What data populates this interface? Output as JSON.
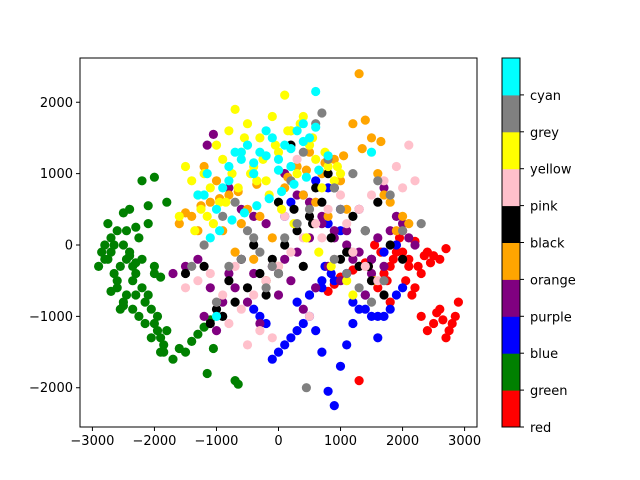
{
  "chart_data": {
    "type": "scatter",
    "title": "",
    "xlabel": "",
    "ylabel": "",
    "xlim": [
      -3200,
      3200
    ],
    "ylim": [
      -2550,
      2620
    ],
    "xticks": [
      -3000,
      -2000,
      -1000,
      0,
      1000,
      2000,
      3000
    ],
    "yticks": [
      -2000,
      -1000,
      0,
      1000,
      2000
    ],
    "grid": false,
    "colorbar": {
      "position": "right",
      "categories": [
        "red",
        "green",
        "blue",
        "purple",
        "orange",
        "black",
        "pink",
        "yellow",
        "grey",
        "cyan"
      ],
      "colors": {
        "red": "#ff0000",
        "green": "#008000",
        "blue": "#0000ff",
        "purple": "#800080",
        "orange": "#ffa500",
        "black": "#000000",
        "pink": "#ffc0cb",
        "yellow": "#ffff00",
        "grey": "#808080",
        "cyan": "#00ffff"
      }
    },
    "series": [
      {
        "name": "green",
        "x": [
          -2900,
          -2850,
          -2800,
          -2750,
          -2700,
          -2650,
          -2600,
          -2550,
          -2500,
          -2450,
          -2400,
          -2350,
          -2300,
          -2250,
          -2200,
          -2150,
          -2100,
          -2050,
          -2000,
          -1950,
          -1900,
          -1850,
          -1800,
          -2750,
          -2650,
          -2600,
          -2500,
          -2450,
          -2400,
          -2350,
          -2300,
          -2200,
          -2100,
          -2000,
          -1950,
          -1850,
          -2800,
          -2700,
          -2550,
          -2450,
          -2350,
          -2250,
          -2150,
          -2050,
          -1900,
          -1700,
          -1600,
          -1500,
          -1400,
          -1300,
          -1200,
          -1100,
          -2600,
          -2500,
          -2400,
          -2300,
          -2200,
          -2100,
          -2000,
          -1800,
          -1150,
          -1050,
          -700,
          -650,
          -2000,
          -1900,
          -2700,
          -2500,
          -2300
        ],
        "y": [
          -300,
          -100,
          0,
          -200,
          100,
          -400,
          -600,
          -300,
          0,
          200,
          -100,
          -500,
          -700,
          100,
          -200,
          -800,
          300,
          -900,
          -1100,
          -1000,
          -1300,
          -1400,
          -1200,
          300,
          0,
          -500,
          -800,
          -200,
          500,
          -300,
          -400,
          -600,
          -700,
          -400,
          -1200,
          -1500,
          -200,
          -100,
          -900,
          -700,
          -900,
          -1000,
          -1100,
          -1300,
          -1500,
          -1600,
          -1450,
          -1500,
          -1350,
          -1250,
          -1150,
          -1050,
          200,
          450,
          -150,
          250,
          900,
          550,
          950,
          600,
          -1800,
          -1450,
          -1900,
          -1950,
          -300,
          -450,
          -650,
          -850,
          -250
        ]
      },
      {
        "name": "red",
        "x": [
          1300,
          1500,
          1600,
          1700,
          1800,
          1900,
          2000,
          2100,
          2200,
          2300,
          2400,
          2500,
          2600,
          2700,
          2800,
          2900,
          2850,
          2750,
          2650,
          2550,
          2450,
          2350,
          2250,
          2150,
          2050,
          1950,
          1850,
          1750,
          1650,
          1550,
          1450,
          2400,
          2500,
          2600,
          2700,
          2200,
          2000,
          1800,
          1400,
          1200,
          1000,
          900,
          800,
          2300,
          2100,
          1900
        ],
        "y": [
          -1900,
          -200,
          -600,
          -400,
          -800,
          -100,
          200,
          -300,
          -600,
          -1000,
          -1200,
          -1100,
          -900,
          -1300,
          -1100,
          -800,
          -1000,
          -1200,
          -1050,
          -950,
          -250,
          -150,
          -300,
          -700,
          -500,
          100,
          -200,
          -500,
          -100,
          0,
          -300,
          -100,
          -150,
          -200,
          -50,
          50,
          -100,
          -300,
          -250,
          -350,
          -450,
          -550,
          -650,
          -400,
          -200,
          0
        ]
      },
      {
        "name": "blue",
        "x": [
          -100,
          0,
          100,
          200,
          300,
          400,
          500,
          600,
          700,
          800,
          900,
          1000,
          1100,
          1200,
          1300,
          1400,
          1500,
          1600,
          1700,
          1800,
          1900,
          2000,
          1000,
          800,
          600,
          400,
          200,
          100,
          -200,
          -300,
          -400,
          300,
          500,
          700,
          900,
          1100,
          1300,
          1500,
          1700,
          1900,
          800,
          1000,
          750,
          850,
          700,
          600,
          500,
          1200,
          1400,
          1600
        ],
        "y": [
          -1600,
          -1500,
          -1400,
          -1300,
          -1200,
          -1100,
          -1000,
          -1200,
          -1500,
          -2050,
          -2250,
          -1700,
          -1400,
          -1100,
          -900,
          -700,
          -1000,
          -1300,
          -1000,
          -900,
          -700,
          -600,
          500,
          800,
          900,
          700,
          600,
          400,
          -1100,
          -1000,
          -900,
          -800,
          -700,
          -600,
          -500,
          -400,
          -300,
          -200,
          -100,
          0,
          300,
          200,
          -300,
          -400,
          -500,
          -600,
          -700,
          -800,
          -900,
          -1000
        ]
      },
      {
        "name": "purple",
        "x": [
          -1700,
          -1500,
          -1300,
          -1200,
          -1100,
          -1000,
          -900,
          -800,
          -700,
          -600,
          -500,
          -400,
          -300,
          -200,
          -100,
          0,
          100,
          200,
          300,
          400,
          500,
          600,
          700,
          800,
          900,
          1000,
          1100,
          1200,
          1300,
          1400,
          1500,
          1600,
          1700,
          1800,
          1900,
          2000,
          2100,
          2200,
          -1050,
          -1150,
          -800,
          -600,
          -400,
          -200,
          100,
          300,
          500,
          700,
          900,
          1100,
          1300,
          1500,
          1700
        ],
        "y": [
          -400,
          -300,
          -200,
          -1000,
          -600,
          -1200,
          -800,
          -400,
          -600,
          -200,
          -800,
          -400,
          -1100,
          -500,
          -300,
          -700,
          -200,
          -500,
          -100,
          -900,
          100,
          -600,
          300,
          -300,
          100,
          -500,
          200,
          -200,
          500,
          -700,
          -400,
          100,
          800,
          200,
          400,
          300,
          100,
          0,
          1550,
          1400,
          800,
          500,
          400,
          300,
          1000,
          700,
          600,
          400,
          200,
          0,
          -100,
          -200,
          -300
        ]
      },
      {
        "name": "orange",
        "x": [
          -1400,
          -1300,
          -1200,
          -1100,
          -1000,
          -900,
          -800,
          -700,
          -600,
          -500,
          -400,
          -300,
          -200,
          -100,
          0,
          100,
          200,
          300,
          400,
          500,
          600,
          700,
          800,
          900,
          1000,
          1100,
          1200,
          1300,
          1400,
          1500,
          1600,
          1700,
          1800,
          1900,
          2000,
          2100,
          1300,
          1550,
          -1600,
          -1500,
          -1250,
          -950,
          -650,
          -350,
          150,
          450,
          750,
          1050,
          1350,
          1650
        ],
        "y": [
          400,
          200,
          1100,
          600,
          900,
          200,
          700,
          -100,
          300,
          500,
          -200,
          400,
          -500,
          100,
          -300,
          800,
          1600,
          1100,
          700,
          1300,
          600,
          1000,
          400,
          1200,
          900,
          500,
          1700,
          2400,
          1750,
          1500,
          1000,
          700,
          600,
          200,
          400,
          300,
          -300,
          -500,
          300,
          450,
          550,
          650,
          750,
          850,
          950,
          1050,
          1150,
          1250,
          1350,
          1450
        ]
      },
      {
        "name": "black",
        "x": [
          -1500,
          -1200,
          -1000,
          -800,
          -600,
          -400,
          -200,
          0,
          200,
          400,
          600,
          800,
          1000,
          1200,
          1400,
          1600,
          1800,
          2000,
          -700,
          -500,
          -300,
          -100,
          100,
          300,
          500,
          700,
          900,
          1100,
          1300,
          1500,
          1700,
          -900,
          -1100,
          0,
          250,
          550,
          850,
          1150,
          1450
        ],
        "y": [
          -400,
          -300,
          -900,
          -500,
          -200,
          0,
          -700,
          -400,
          1400,
          -300,
          800,
          1000,
          -200,
          400,
          200,
          600,
          0,
          -200,
          -800,
          -600,
          -400,
          -200,
          0,
          200,
          400,
          600,
          800,
          -100,
          -300,
          -500,
          -700,
          -1000,
          -1100,
          600,
          500,
          300,
          100,
          -100,
          -300
        ]
      },
      {
        "name": "pink",
        "x": [
          -1500,
          -1300,
          -1100,
          -900,
          -700,
          -500,
          -300,
          -100,
          100,
          300,
          500,
          700,
          900,
          1100,
          1300,
          1500,
          1700,
          1900,
          2100,
          2200,
          2000,
          -800,
          -600,
          -400,
          -200,
          0,
          200,
          400,
          600,
          800,
          1000,
          1200,
          1400,
          1600,
          -1000
        ],
        "y": [
          -600,
          -500,
          -400,
          -700,
          -300,
          -1400,
          -1200,
          -1300,
          400,
          1200,
          -1000,
          100,
          -200,
          300,
          500,
          700,
          900,
          1100,
          1400,
          900,
          800,
          -1100,
          -900,
          -700,
          -500,
          -300,
          -100,
          100,
          300,
          500,
          700,
          -100,
          -300,
          -500,
          -800
        ]
      },
      {
        "name": "yellow",
        "x": [
          -1600,
          -1500,
          -1400,
          -1300,
          -1200,
          -1100,
          -1000,
          -900,
          -800,
          -700,
          -600,
          -500,
          -400,
          -300,
          -200,
          -100,
          0,
          100,
          200,
          300,
          400,
          500,
          600,
          700,
          800,
          900,
          1000,
          -1250,
          -1050,
          -850,
          -650,
          -450,
          -250,
          -50,
          150,
          350,
          550,
          750,
          950,
          -1350,
          -1150,
          -950,
          -750,
          -550,
          -350,
          -150,
          50,
          250,
          450,
          650,
          850,
          1100,
          1200
        ],
        "y": [
          400,
          1100,
          900,
          700,
          1000,
          800,
          1400,
          1200,
          1600,
          1900,
          1300,
          1700,
          1100,
          1500,
          900,
          1800,
          1300,
          2100,
          1600,
          1000,
          1800,
          1400,
          1200,
          800,
          1100,
          900,
          1000,
          500,
          300,
          600,
          800,
          1000,
          1200,
          1400,
          1600,
          1700,
          1500,
          1300,
          1100,
          200,
          400,
          600,
          1000,
          1500,
          900,
          700,
          500,
          300,
          100,
          -100,
          -300,
          -500,
          -700
        ]
      },
      {
        "name": "grey",
        "x": [
          -1400,
          -1200,
          -1000,
          -800,
          -600,
          -400,
          -200,
          0,
          200,
          400,
          600,
          700,
          800,
          900,
          1000,
          1200,
          1400,
          1600,
          1800,
          2000,
          2300,
          450,
          -900,
          -700,
          -500,
          -300,
          -100,
          100,
          300,
          500,
          900,
          1100,
          1300,
          1500,
          1700
        ],
        "y": [
          -300,
          0,
          -800,
          -300,
          -200,
          100,
          -600,
          -400,
          900,
          1300,
          1700,
          1850,
          1200,
          800,
          500,
          1000,
          200,
          900,
          700,
          200,
          300,
          -2000,
          400,
          600,
          200,
          -100,
          -300,
          100,
          300,
          500,
          -200,
          -400,
          -600,
          -800,
          -500
        ]
      },
      {
        "name": "cyan",
        "x": [
          -1100,
          -1000,
          -900,
          -800,
          -700,
          -600,
          -500,
          -400,
          -300,
          -200,
          -100,
          0,
          100,
          200,
          300,
          400,
          500,
          600,
          -1200,
          -1000,
          -800,
          -600,
          -400,
          -200,
          0,
          200,
          400,
          600,
          800,
          -950,
          -750,
          -550,
          -350,
          -150,
          50,
          250,
          450,
          650,
          -1300,
          -1150,
          1500
        ],
        "y": [
          100,
          500,
          800,
          1100,
          1300,
          1200,
          1400,
          1000,
          1300,
          1600,
          1500,
          1200,
          1400,
          1100,
          1600,
          1700,
          1500,
          2150,
          700,
          -1000,
          900,
          1300,
          1150,
          1250,
          1050,
          1350,
          1450,
          1650,
          1250,
          200,
          350,
          450,
          550,
          650,
          750,
          850,
          950,
          1050,
          700,
          1000,
          1300
        ]
      }
    ]
  }
}
